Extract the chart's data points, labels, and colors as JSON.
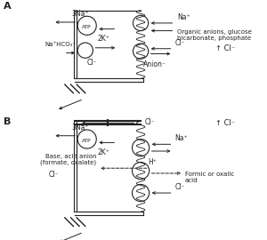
{
  "line_color": "#222222",
  "title_A": "A",
  "title_B": "B",
  "labels": {
    "3Na_plus": "3Na⁺",
    "ATP": "ATP",
    "2K_plus": "2K⁺",
    "NaHCO3": "Na⁺HCO₃⁻",
    "Cl_minus_A": "Cl⁻",
    "Na_plus_right_A": "Na⁺",
    "organic_anions": "Organic anions, glucose\nbicarbonate, phosphate",
    "Cl_minus_right_A": "Cl⁻",
    "up_Cl_A": "↑ Cl⁻",
    "Anion_minus": "Anion⁻",
    "Cl_minus_B_top": "Cl⁻",
    "up_Cl_B": "↑ Cl⁻",
    "Na_plus_right_B": "Na⁺",
    "3Na_plus_B": "3Na⁺",
    "ATP_B": "ATP",
    "2K_plus_B": "2K⁺",
    "H_plus": "H⁺",
    "Base_acid": "Base, acid anion\n(formate, oxalate)",
    "Formic_oxalic": "Formic or oxalic\nacid",
    "Cl_minus_B_bottom": "Cl⁻",
    "Cl_minus_B_left": "Cl⁻"
  }
}
